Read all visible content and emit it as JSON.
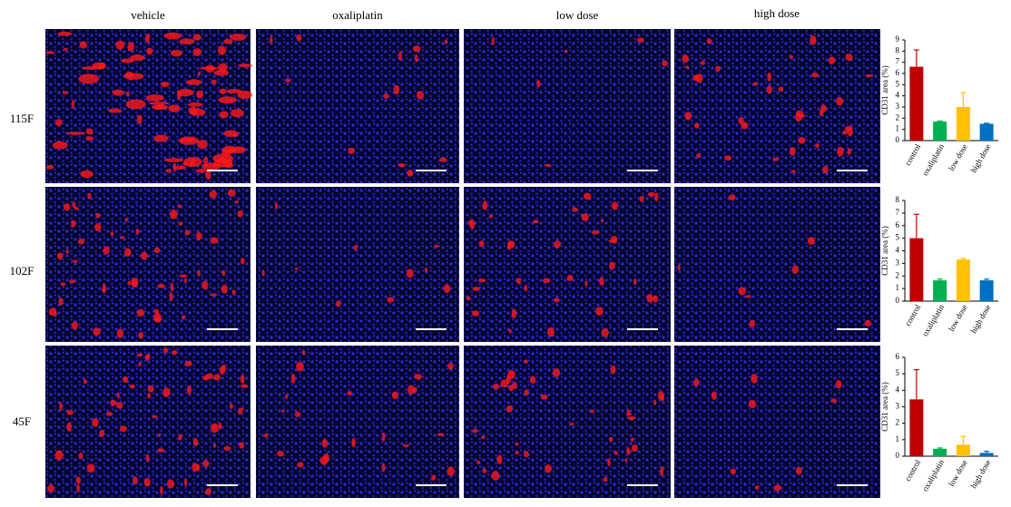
{
  "panel": {
    "column_labels": [
      "vehicle",
      "oxaliplatin",
      "low dose",
      "high dose"
    ],
    "row_labels": [
      "115F",
      "102F",
      "45F"
    ]
  },
  "chart_data": [
    {
      "type": "bar",
      "y_label": "CD31 area (%)",
      "categories": [
        "control",
        "oxaliplatin",
        "low dose",
        "high dose"
      ],
      "values": [
        6.6,
        1.7,
        3.0,
        1.5
      ],
      "errors": [
        1.5,
        0.05,
        1.3,
        0.05
      ],
      "colors": [
        "#c00000",
        "#00b050",
        "#ffc000",
        "#0070c0"
      ],
      "ylim": [
        0,
        9
      ],
      "yticks": [
        0,
        1,
        2,
        3,
        4,
        5,
        6,
        7,
        8,
        9
      ]
    },
    {
      "type": "bar",
      "y_label": "CD31 area (%)",
      "categories": [
        "control",
        "oxaliplatin",
        "low dose",
        "high dose"
      ],
      "values": [
        5.0,
        1.65,
        3.3,
        1.65
      ],
      "errors": [
        1.9,
        0.1,
        0.1,
        0.1
      ],
      "colors": [
        "#c00000",
        "#00b050",
        "#ffc000",
        "#0070c0"
      ],
      "ylim": [
        0,
        8
      ],
      "yticks": [
        0,
        1,
        2,
        3,
        4,
        5,
        6,
        7,
        8
      ]
    },
    {
      "type": "bar",
      "y_label": "CD31 area (%)",
      "categories": [
        "control",
        "oxaliplatin",
        "low dose",
        "high dose"
      ],
      "values": [
        3.45,
        0.45,
        0.7,
        0.2
      ],
      "errors": [
        1.8,
        0.05,
        0.5,
        0.1
      ],
      "colors": [
        "#c00000",
        "#00b050",
        "#ffc000",
        "#0070c0"
      ],
      "ylim": [
        0,
        6
      ],
      "yticks": [
        0,
        1,
        2,
        3,
        4,
        5,
        6
      ]
    }
  ]
}
